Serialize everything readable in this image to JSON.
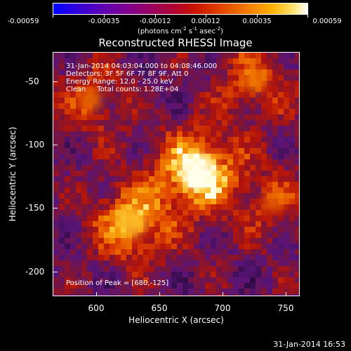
{
  "colorbar": {
    "tick_labels": [
      "-0.00059",
      "-0.00035",
      "-0.00012",
      "0.00012",
      "0.00035",
      "0.00059"
    ],
    "unit_label": "(photons cm",
    "unit_sup1": "-2",
    "unit_mid": " s",
    "unit_sup2": "-1",
    "unit_mid2": " asec",
    "unit_sup3": "-2",
    "unit_end": ")"
  },
  "title": "Reconstructed RHESSI Image",
  "info": {
    "time_range": "31-Jan-2014 04:03:04.000 to 04:08:46.000",
    "detectors": "Detectors: 3F 5F 6F 7F 8F 9F, Att 0",
    "energy": "Energy Range: 12.0 - 25.0 keV",
    "clean": "Clean     Total counts: 1.28E+04",
    "peak": "Position of Peak = [680,-125]"
  },
  "chart_data": {
    "type": "heatmap",
    "title": "Reconstructed RHESSI Image",
    "xlabel": "Heliocentric X (arcsec)",
    "ylabel": "Heliocentric Y (arcsec)",
    "xlim": [
      566,
      761
    ],
    "ylim": [
      -221,
      -28
    ],
    "x_ticks": [
      600,
      650,
      700,
      750
    ],
    "y_ticks": [
      -50,
      -100,
      -150,
      -200
    ],
    "colorbar_range": [
      -0.00059,
      0.00059
    ],
    "peak": [
      680,
      -125
    ],
    "sources": [
      {
        "x": 680,
        "y": -122,
        "strength": 1.0
      },
      {
        "x": 628,
        "y": -162,
        "strength": 0.75
      },
      {
        "x": 725,
        "y": -50,
        "strength": 0.45
      },
      {
        "x": 595,
        "y": -65,
        "strength": 0.4
      },
      {
        "x": 740,
        "y": -145,
        "strength": 0.35
      }
    ]
  },
  "axes": {
    "x_title": "Heliocentric X (arcsec)",
    "y_title": "Heliocentric Y (arcsec)",
    "x_tick_labels": [
      "600",
      "650",
      "700",
      "750"
    ],
    "y_tick_labels": [
      "-50",
      "-100",
      "-150",
      "-200"
    ]
  },
  "footer": {
    "timestamp": "31-Jan-2014 16:53"
  }
}
